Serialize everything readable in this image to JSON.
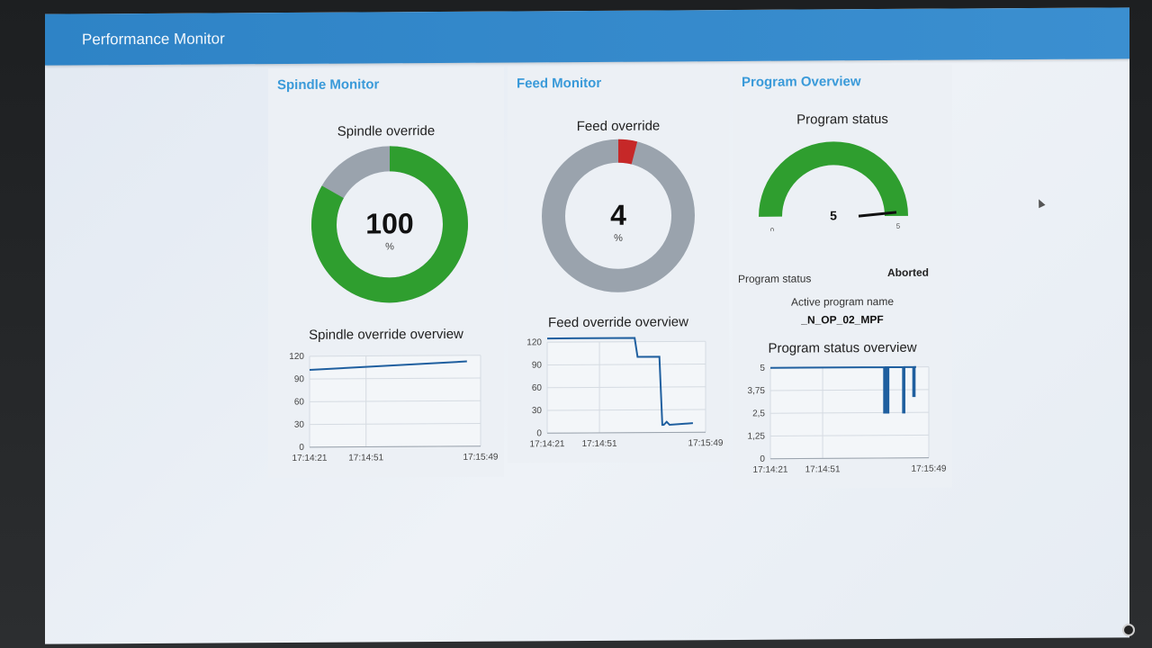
{
  "app": {
    "title": "Performance Monitor"
  },
  "colors": {
    "accent": "#3a9ad9",
    "topbar": "#2e83c6",
    "green": "#2f9e2f",
    "gray": "#9aa3ad",
    "red": "#c62828",
    "line": "#1f5f9f"
  },
  "spindle": {
    "heading": "Spindle Monitor",
    "gauge_title": "Spindle override",
    "value": "100",
    "unit": "%",
    "fill_fraction": 0.833,
    "chart_title": "Spindle override overview"
  },
  "feed": {
    "heading": "Feed Monitor",
    "gauge_title": "Feed override",
    "value": "4",
    "unit": "%",
    "fill_fraction": 0.04,
    "chart_title": "Feed override overview"
  },
  "program": {
    "heading": "Program Overview",
    "gauge_title": "Program status",
    "value": "5",
    "gauge_min": "0",
    "gauge_max": "5",
    "status_label": "Program status",
    "status_value": "Aborted",
    "active_label": "Active program name",
    "active_value": "_N_OP_02_MPF",
    "chart_title": "Program status overview"
  },
  "chart_data": [
    {
      "type": "line",
      "title": "Spindle override overview",
      "x_ticks": [
        "17:14:21",
        "17:14:51",
        "17:15:49"
      ],
      "y_ticks": [
        "0",
        "30",
        "60",
        "90",
        "120"
      ],
      "ylim": [
        0,
        120
      ],
      "x": [
        0,
        1
      ],
      "series": [
        {
          "values": [
            102,
            112
          ]
        }
      ]
    },
    {
      "type": "line",
      "title": "Feed override overview",
      "x_ticks": [
        "17:14:21",
        "17:14:51",
        "17:15:49"
      ],
      "y_ticks": [
        "0",
        "30",
        "60",
        "90",
        "120"
      ],
      "ylim": [
        0,
        120
      ],
      "x": [
        0,
        0.6,
        0.62,
        0.77,
        0.79,
        0.8,
        0.82,
        0.84,
        1
      ],
      "series": [
        {
          "values": [
            125,
            125,
            100,
            100,
            10,
            10,
            14,
            10,
            12
          ]
        }
      ]
    },
    {
      "type": "line",
      "title": "Program status overview",
      "x_ticks": [
        "17:14:21",
        "17:14:51",
        "17:15:49"
      ],
      "y_ticks": [
        "0",
        "1,25",
        "2,5",
        "3,75",
        "5"
      ],
      "ylim": [
        0,
        5
      ],
      "x": [
        0,
        0.78,
        0.78,
        0.79,
        0.79,
        0.8,
        0.8,
        0.81,
        0.81,
        0.91,
        0.91,
        0.92,
        0.92,
        0.98,
        0.98,
        0.99,
        0.99,
        1
      ],
      "series": [
        {
          "values": [
            5,
            5,
            2.5,
            2.5,
            5,
            5,
            2.5,
            2.5,
            5,
            5,
            2.5,
            2.5,
            5,
            5,
            3.4,
            3.4,
            5,
            5
          ]
        }
      ]
    }
  ]
}
